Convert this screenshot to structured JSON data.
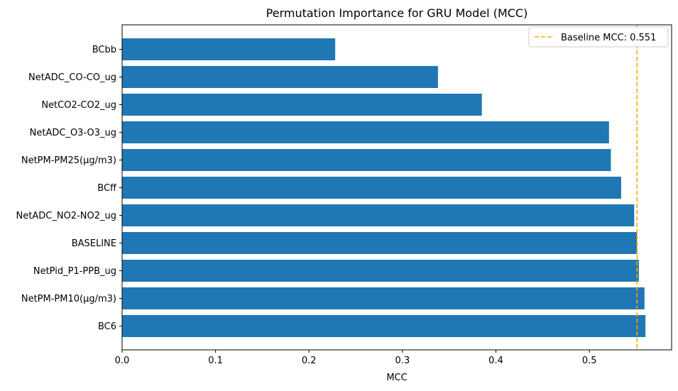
{
  "chart_data": {
    "type": "bar",
    "orientation": "horizontal",
    "title": "Permutation Importance for GRU Model (MCC)",
    "xlabel": "MCC",
    "ylabel": "",
    "xlim": [
      0,
      0.588
    ],
    "xticks": [
      0.0,
      0.1,
      0.2,
      0.3,
      0.4,
      0.5
    ],
    "xtick_labels": [
      "0.0",
      "0.1",
      "0.2",
      "0.3",
      "0.4",
      "0.5"
    ],
    "categories": [
      "BCbb",
      "NetADC_CO-CO_ug",
      "NetCO2-CO2_ug",
      "NetADC_O3-O3_ug",
      "NetPM-PM25(µg/m3)",
      "BCff",
      "NetADC_NO2-NO2_ug",
      "BASELINE",
      "NetPid_P1-PPB_ug",
      "NetPM-PM10(µg/m3)",
      "BC6"
    ],
    "values": [
      0.228,
      0.338,
      0.385,
      0.521,
      0.523,
      0.534,
      0.548,
      0.551,
      0.553,
      0.559,
      0.56
    ],
    "bar_color": "#1f77b4",
    "baseline": {
      "value": 0.551,
      "label": "Baseline MCC: 0.551",
      "color": "#ffa500",
      "style": "dashed"
    },
    "legend_position": "top-right",
    "grid": false
  }
}
